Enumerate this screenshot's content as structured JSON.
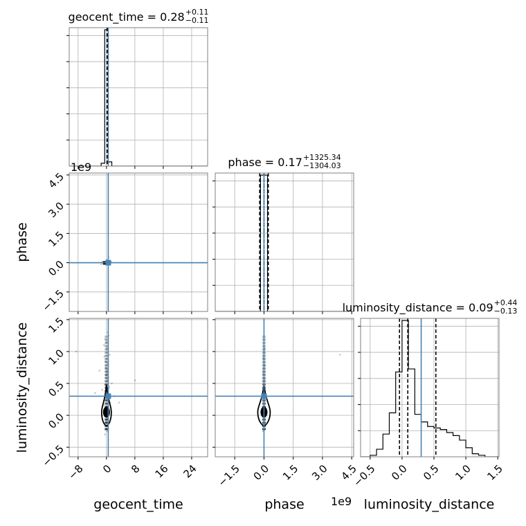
{
  "chart_data": {
    "type": "corner",
    "truth_color": "#4682b4",
    "parameters": [
      "geocent_time",
      "phase",
      "luminosity_distance"
    ],
    "truths": {
      "geocent_time": 0.5,
      "phase": 0.0,
      "luminosity_distance": 0.3
    },
    "axis_labels": {
      "geocent_time": "geocent_time",
      "phase": "phase",
      "luminosity_distance": "luminosity_distance"
    },
    "ranges": {
      "geocent_time": [
        -10.5,
        28.5
      ],
      "phase": [
        -2.5,
        4.6
      ],
      "luminosity_distance": [
        -0.65,
        1.52
      ]
    },
    "ticks": {
      "geocent_time": {
        "values": [
          -8,
          0,
          8,
          16,
          24
        ],
        "labels": [
          "−8",
          "0",
          "8",
          "16",
          "24"
        ]
      },
      "phase": {
        "values": [
          -1.5,
          0.0,
          1.5,
          3.0,
          4.5
        ],
        "labels": [
          "−1.5",
          "0.0",
          "1.5",
          "3.0",
          "4.5"
        ],
        "offset_text": "1e9"
      },
      "luminosity_distance": {
        "values": [
          -0.5,
          0.0,
          0.5,
          1.0,
          1.5
        ],
        "labels": [
          "−0.5",
          "0.0",
          "0.5",
          "1.0",
          "1.5"
        ]
      }
    },
    "titles": {
      "geocent_time": {
        "text": "geocent_time = 0.28",
        "sup": "+0.11",
        "sub": "−0.11"
      },
      "phase": {
        "text": "phase = 0.17",
        "sup": "+1325.34",
        "sub": "−1304.03"
      },
      "luminosity_distance": {
        "text": "luminosity_distance = 0.09",
        "sup": "+0.44",
        "sub": "−0.13"
      }
    },
    "quantiles": {
      "geocent_time": [
        0.17,
        0.28,
        0.39
      ],
      "phase": [
        -0.22,
        0.0,
        0.22
      ],
      "luminosity_distance": [
        -0.04,
        0.09,
        0.53
      ]
    },
    "histograms": {
      "geocent_time": {
        "edges": [
          -1.5,
          -0.5,
          0.5,
          1.5
        ],
        "counts": [
          0.02,
          0.96,
          0.03
        ]
      },
      "phase": {
        "edges": [
          -0.18,
          0.18
        ],
        "counts": [
          1.0
        ]
      },
      "luminosity_distance": {
        "edges": [
          -0.6,
          -0.5,
          -0.4,
          -0.3,
          -0.2,
          -0.1,
          0.0,
          0.1,
          0.2,
          0.3,
          0.4,
          0.5,
          0.6,
          0.7,
          0.8,
          0.9,
          1.0,
          1.1,
          1.2,
          1.3,
          1.4
        ],
        "counts": [
          0.0,
          0.01,
          0.05,
          0.15,
          0.29,
          0.56,
          0.9,
          0.58,
          0.28,
          0.23,
          0.2,
          0.19,
          0.18,
          0.16,
          0.14,
          0.11,
          0.06,
          0.02,
          0.01,
          0.0
        ]
      }
    },
    "scatter_geocent_time_vs_phase": {
      "x": [
        -1.2,
        -0.4,
        0.3,
        0.8,
        1.1,
        -0.9,
        0.1,
        0.6,
        -0.2,
        0.9,
        1.4,
        -1.5
      ],
      "y": [
        0.05,
        -0.02,
        0.08,
        0.02,
        -0.03,
        0.01,
        0.15,
        0.28,
        -0.05,
        0.0,
        0.04,
        -0.08
      ]
    },
    "scatter_geocent_time_vs_luminosity_distance": {
      "x": [
        -0.3,
        0.2,
        -0.6,
        0.5,
        0.1,
        -0.1,
        0.4,
        -0.4,
        0.7,
        0.0,
        -0.2,
        0.3,
        1.0,
        -0.8,
        0.6,
        0.2,
        -0.5,
        0.1,
        0.4,
        -0.1,
        1.5,
        -1.2,
        2.2,
        -2.0,
        0.9,
        -0.7,
        0.3,
        0.0,
        -0.3,
        0.5,
        3.5,
        -3.2,
        8.0,
        -8.5,
        0.2,
        -0.4,
        0.6,
        0.1,
        -0.2,
        0.8
      ],
      "y": [
        1.2,
        1.05,
        0.92,
        0.8,
        0.7,
        0.62,
        0.55,
        0.48,
        0.42,
        0.36,
        0.3,
        0.25,
        0.2,
        0.16,
        0.12,
        0.08,
        0.04,
        0.0,
        -0.05,
        -0.1,
        0.5,
        0.4,
        0.3,
        0.7,
        0.95,
        1.1,
        1.3,
        1.15,
        0.85,
        0.6,
        0.2,
        0.35,
        0.55,
        1.0,
        -0.25,
        -0.3,
        1.25,
        0.65,
        0.75,
        0.45
      ]
    },
    "scatter_phase_vs_luminosity_distance": {
      "x": [
        0.0,
        0.02,
        -0.02,
        0.03,
        -0.01,
        0.01,
        0.0,
        -0.03,
        0.02,
        0.0,
        0.01,
        -0.02,
        0.0,
        0.04,
        -0.04,
        3.9
      ],
      "y": [
        1.2,
        1.05,
        0.9,
        0.78,
        0.66,
        0.56,
        0.46,
        0.38,
        0.3,
        0.22,
        0.14,
        0.06,
        -0.05,
        -0.15,
        -0.25,
        0.95
      ]
    }
  }
}
